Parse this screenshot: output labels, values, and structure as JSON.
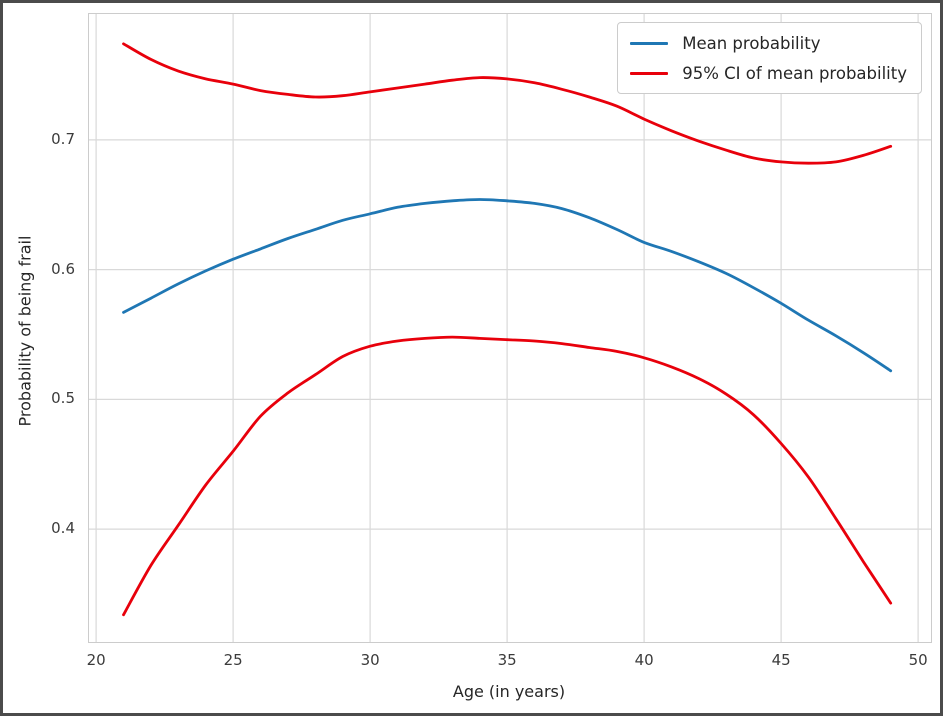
{
  "figure": {
    "background": "#ffffff",
    "border_color": "#4b4b4b"
  },
  "styles": {
    "grid_color": "#d9d9d9",
    "frame_color": "#cccccc",
    "text_color": "#262626",
    "tick_color": "#3b3b3b",
    "curve_width": 2.8
  },
  "chart_data": {
    "type": "line",
    "title": "",
    "xlabel": "Age (in years)",
    "ylabel": "Probability of being frail",
    "xlim": [
      19.74,
      50.47
    ],
    "ylim": [
      0.313,
      0.797
    ],
    "x_ticks": [
      20,
      25,
      30,
      35,
      40,
      45,
      50
    ],
    "y_ticks": [
      0.4,
      0.5,
      0.6,
      0.7
    ],
    "grid": true,
    "legend_position": "upper right",
    "x": [
      21,
      22,
      23,
      24,
      25,
      26,
      27,
      28,
      29,
      30,
      31,
      32,
      33,
      34,
      35,
      36,
      37,
      38,
      39,
      40,
      41,
      42,
      43,
      44,
      45,
      46,
      47,
      48,
      49
    ],
    "series": [
      {
        "name": "Mean probability",
        "color": "#1f77b4",
        "values": [
          0.567,
          0.578,
          0.589,
          0.599,
          0.608,
          0.616,
          0.624,
          0.631,
          0.638,
          0.643,
          0.648,
          0.651,
          0.653,
          0.654,
          0.653,
          0.651,
          0.647,
          0.64,
          0.631,
          0.621,
          0.614,
          0.606,
          0.597,
          0.586,
          0.574,
          0.561,
          0.549,
          0.536,
          0.522
        ]
      },
      {
        "name": "95% CI upper bound",
        "color": "#e8000b",
        "values": [
          0.774,
          0.762,
          0.753,
          0.747,
          0.743,
          0.738,
          0.735,
          0.733,
          0.734,
          0.737,
          0.74,
          0.743,
          0.746,
          0.748,
          0.747,
          0.744,
          0.739,
          0.733,
          0.726,
          0.716,
          0.707,
          0.699,
          0.692,
          0.686,
          0.683,
          0.682,
          0.683,
          0.688,
          0.695
        ]
      },
      {
        "name": "95% CI lower bound",
        "color": "#e8000b",
        "values": [
          0.334,
          0.372,
          0.403,
          0.434,
          0.46,
          0.487,
          0.505,
          0.519,
          0.533,
          0.541,
          0.545,
          0.547,
          0.548,
          0.547,
          0.546,
          0.545,
          0.543,
          0.54,
          0.537,
          0.532,
          0.525,
          0.516,
          0.504,
          0.488,
          0.466,
          0.44,
          0.408,
          0.375,
          0.343
        ]
      }
    ],
    "legend": [
      {
        "label": "Mean probability",
        "color": "#1f77b4"
      },
      {
        "label": "95% CI of mean probability",
        "color": "#e8000b"
      }
    ]
  }
}
